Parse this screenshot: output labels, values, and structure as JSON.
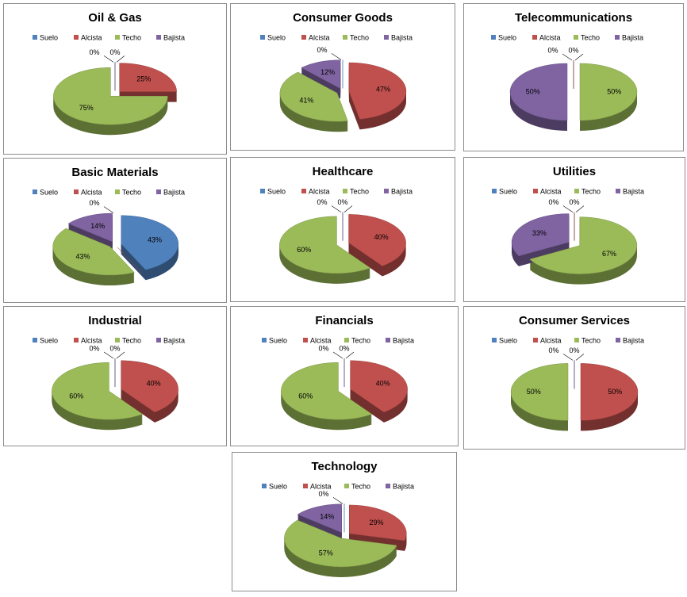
{
  "chart_data": [
    {
      "type": "pie",
      "title": "Oil & Gas",
      "categories": [
        "Suelo",
        "Alcista",
        "Techo",
        "Bajista"
      ],
      "values": [
        0,
        25,
        75,
        0
      ],
      "value_labels": [
        "0%",
        "25%",
        "75%",
        "0%"
      ],
      "colors": [
        "#4f81bd",
        "#c0504d",
        "#9bbb59",
        "#8064a2"
      ]
    },
    {
      "type": "pie",
      "title": "Consumer Goods",
      "categories": [
        "Suelo",
        "Alcista",
        "Techo",
        "Bajista"
      ],
      "values": [
        0,
        47,
        41,
        12
      ],
      "value_labels": [
        "0%",
        "47%",
        "41%",
        "12%"
      ],
      "colors": [
        "#4f81bd",
        "#c0504d",
        "#9bbb59",
        "#8064a2"
      ]
    },
    {
      "type": "pie",
      "title": "Telecommunications",
      "categories": [
        "Suelo",
        "Alcista",
        "Techo",
        "Bajista"
      ],
      "values": [
        0,
        0,
        50,
        50
      ],
      "value_labels": [
        "0%",
        "0%",
        "50%",
        "50%"
      ],
      "colors": [
        "#4f81bd",
        "#c0504d",
        "#9bbb59",
        "#8064a2"
      ]
    },
    {
      "type": "pie",
      "title": "Basic Materials",
      "categories": [
        "Suelo",
        "Alcista",
        "Techo",
        "Bajista"
      ],
      "values": [
        43,
        0,
        43,
        14
      ],
      "value_labels": [
        "43%",
        "0%",
        "43%",
        "14%"
      ],
      "colors": [
        "#4f81bd",
        "#c0504d",
        "#9bbb59",
        "#8064a2"
      ]
    },
    {
      "type": "pie",
      "title": "Healthcare",
      "categories": [
        "Suelo",
        "Alcista",
        "Techo",
        "Bajista"
      ],
      "values": [
        0,
        40,
        60,
        0
      ],
      "value_labels": [
        "0%",
        "40%",
        "60%",
        "0%"
      ],
      "colors": [
        "#4f81bd",
        "#c0504d",
        "#9bbb59",
        "#8064a2"
      ]
    },
    {
      "type": "pie",
      "title": "Utilities",
      "categories": [
        "Suelo",
        "Alcista",
        "Techo",
        "Bajista"
      ],
      "values": [
        0,
        0,
        67,
        33
      ],
      "value_labels": [
        "0%",
        "0%",
        "67%",
        "33%"
      ],
      "colors": [
        "#4f81bd",
        "#c0504d",
        "#9bbb59",
        "#8064a2"
      ]
    },
    {
      "type": "pie",
      "title": "Industrial",
      "categories": [
        "Suelo",
        "Alcista",
        "Techo",
        "Bajista"
      ],
      "values": [
        0,
        40,
        60,
        0
      ],
      "value_labels": [
        "0%",
        "40%",
        "60%",
        "0%"
      ],
      "colors": [
        "#4f81bd",
        "#c0504d",
        "#9bbb59",
        "#8064a2"
      ]
    },
    {
      "type": "pie",
      "title": "Financials",
      "categories": [
        "Suelo",
        "Alcista",
        "Techo",
        "Bajista"
      ],
      "values": [
        0,
        40,
        60,
        0
      ],
      "value_labels": [
        "0%",
        "40%",
        "60%",
        "0%"
      ],
      "colors": [
        "#4f81bd",
        "#c0504d",
        "#9bbb59",
        "#8064a2"
      ]
    },
    {
      "type": "pie",
      "title": "Consumer Services",
      "categories": [
        "Suelo",
        "Alcista",
        "Techo",
        "Bajista"
      ],
      "values": [
        0,
        50,
        50,
        0
      ],
      "value_labels": [
        "0%",
        "50%",
        "50%",
        "0%"
      ],
      "colors": [
        "#4f81bd",
        "#c0504d",
        "#9bbb59",
        "#8064a2"
      ]
    },
    {
      "type": "pie",
      "title": "Technology",
      "categories": [
        "Suelo",
        "Alcista",
        "Techo",
        "Bajista"
      ],
      "values": [
        0,
        29,
        57,
        14
      ],
      "value_labels": [
        "0%",
        "29%",
        "57%",
        "14%"
      ],
      "colors": [
        "#4f81bd",
        "#c0504d",
        "#9bbb59",
        "#8064a2"
      ]
    }
  ]
}
